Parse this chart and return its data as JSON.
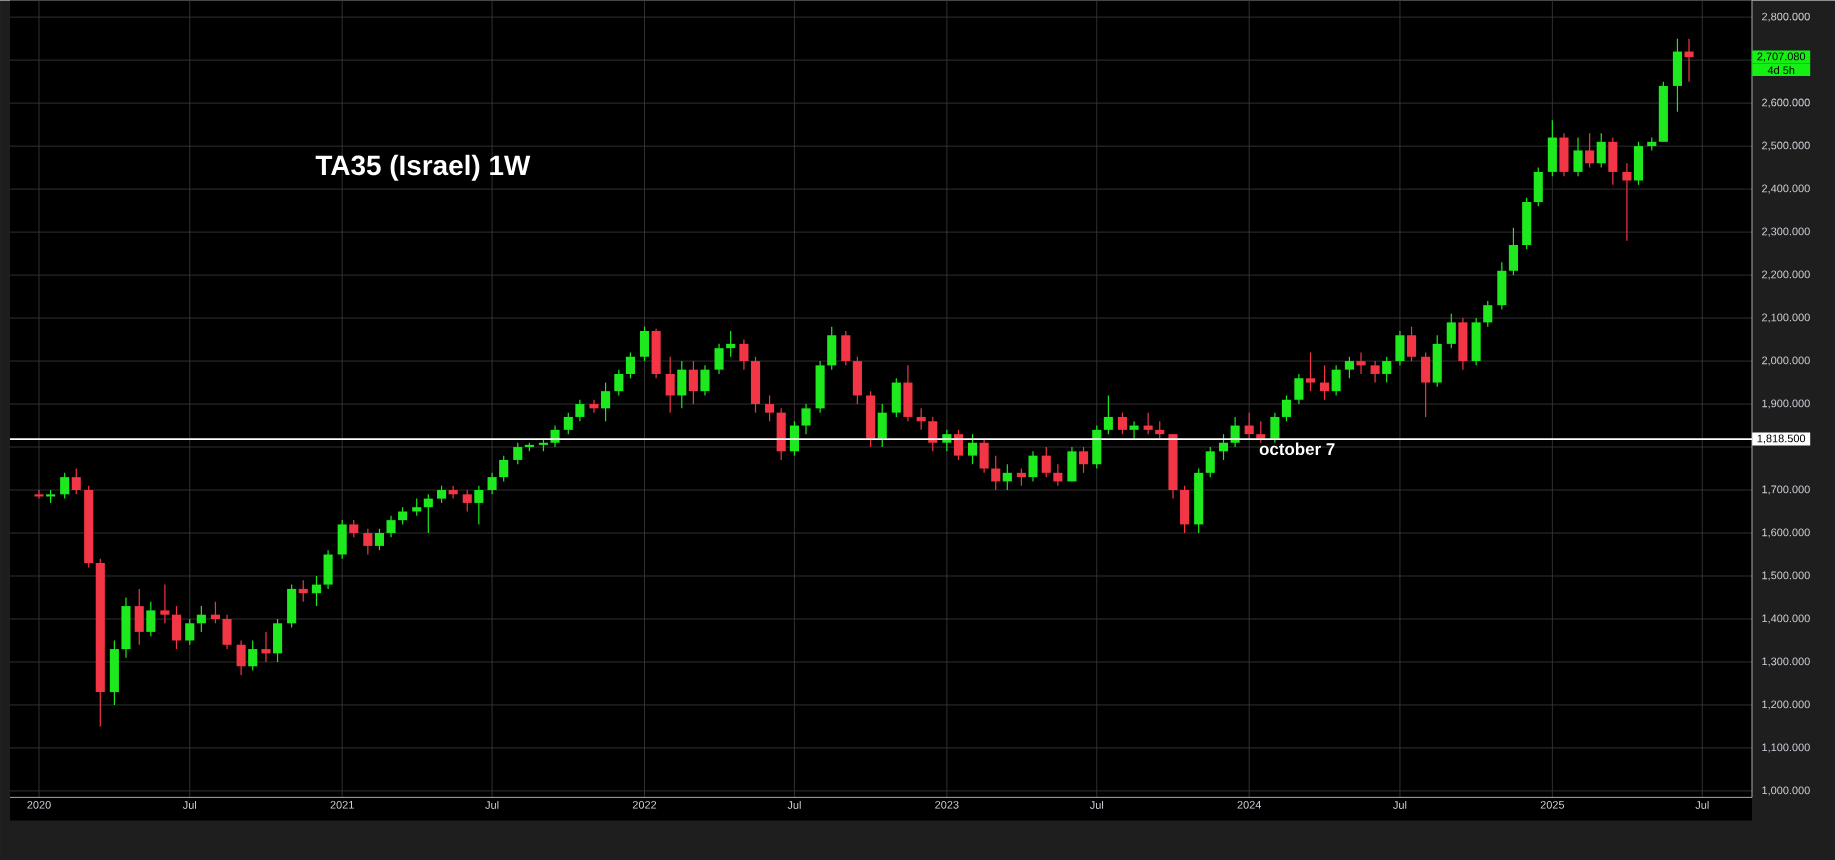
{
  "chart_data": {
    "type": "candlestick",
    "title": "TA35 (Israel) 1W",
    "x": [
      "2020-01-01",
      "2020-01-15",
      "2020-02-01",
      "2020-02-15",
      "2020-03-01",
      "2020-03-15",
      "2020-04-01",
      "2020-04-15",
      "2020-05-01",
      "2020-05-15",
      "2020-06-01",
      "2020-06-15",
      "2020-07-01",
      "2020-07-15",
      "2020-08-01",
      "2020-08-15",
      "2020-09-01",
      "2020-09-15",
      "2020-10-01",
      "2020-10-15",
      "2020-11-01",
      "2020-11-15",
      "2020-12-01",
      "2020-12-15",
      "2021-01-01",
      "2021-01-15",
      "2021-02-01",
      "2021-02-15",
      "2021-03-01",
      "2021-03-15",
      "2021-04-01",
      "2021-04-15",
      "2021-05-01",
      "2021-05-15",
      "2021-06-01",
      "2021-06-15",
      "2021-07-01",
      "2021-07-15",
      "2021-08-01",
      "2021-08-15",
      "2021-09-01",
      "2021-09-15",
      "2021-10-01",
      "2021-10-15",
      "2021-11-01",
      "2021-11-15",
      "2021-12-01",
      "2021-12-15",
      "2022-01-01",
      "2022-01-15",
      "2022-02-01",
      "2022-02-15",
      "2022-03-01",
      "2022-03-15",
      "2022-04-01",
      "2022-04-15",
      "2022-05-01",
      "2022-05-15",
      "2022-06-01",
      "2022-06-15",
      "2022-07-01",
      "2022-07-15",
      "2022-08-01",
      "2022-08-15",
      "2022-09-01",
      "2022-09-15",
      "2022-10-01",
      "2022-10-15",
      "2022-11-01",
      "2022-11-15",
      "2022-12-01",
      "2022-12-15",
      "2023-01-01",
      "2023-01-15",
      "2023-02-01",
      "2023-02-15",
      "2023-03-01",
      "2023-03-15",
      "2023-04-01",
      "2023-04-15",
      "2023-05-01",
      "2023-05-15",
      "2023-06-01",
      "2023-06-15",
      "2023-07-01",
      "2023-07-15",
      "2023-08-01",
      "2023-08-15",
      "2023-09-01",
      "2023-09-15",
      "2023-10-01",
      "2023-10-15",
      "2023-11-01",
      "2023-11-15",
      "2023-12-01",
      "2023-12-15",
      "2024-01-01",
      "2024-01-15",
      "2024-02-01",
      "2024-02-15",
      "2024-03-01",
      "2024-03-15",
      "2024-04-01",
      "2024-04-15",
      "2024-05-01",
      "2024-05-15",
      "2024-06-01",
      "2024-06-15",
      "2024-07-01",
      "2024-07-15",
      "2024-08-01",
      "2024-08-15",
      "2024-09-01",
      "2024-09-15",
      "2024-10-01",
      "2024-10-15",
      "2024-11-01",
      "2024-11-15",
      "2024-12-01",
      "2024-12-15",
      "2025-01-01",
      "2025-01-15",
      "2025-02-01",
      "2025-02-15",
      "2025-03-01",
      "2025-03-15",
      "2025-04-01",
      "2025-04-15",
      "2025-05-01",
      "2025-05-15",
      "2025-06-01",
      "2025-06-15"
    ],
    "ohlc": [
      [
        1690,
        1700,
        1680,
        1685
      ],
      [
        1685,
        1700,
        1670,
        1690
      ],
      [
        1690,
        1740,
        1680,
        1730
      ],
      [
        1730,
        1750,
        1690,
        1700
      ],
      [
        1700,
        1710,
        1520,
        1530
      ],
      [
        1530,
        1540,
        1150,
        1230
      ],
      [
        1230,
        1350,
        1200,
        1330
      ],
      [
        1330,
        1450,
        1310,
        1430
      ],
      [
        1430,
        1470,
        1340,
        1370
      ],
      [
        1370,
        1440,
        1360,
        1420
      ],
      [
        1420,
        1480,
        1390,
        1410
      ],
      [
        1410,
        1430,
        1330,
        1350
      ],
      [
        1350,
        1400,
        1340,
        1390
      ],
      [
        1390,
        1430,
        1370,
        1410
      ],
      [
        1410,
        1440,
        1390,
        1400
      ],
      [
        1400,
        1410,
        1330,
        1340
      ],
      [
        1340,
        1350,
        1270,
        1290
      ],
      [
        1290,
        1350,
        1280,
        1330
      ],
      [
        1330,
        1370,
        1300,
        1320
      ],
      [
        1320,
        1400,
        1300,
        1390
      ],
      [
        1390,
        1480,
        1380,
        1470
      ],
      [
        1470,
        1490,
        1440,
        1460
      ],
      [
        1460,
        1500,
        1430,
        1480
      ],
      [
        1480,
        1560,
        1470,
        1550
      ],
      [
        1550,
        1630,
        1540,
        1620
      ],
      [
        1620,
        1630,
        1590,
        1600
      ],
      [
        1600,
        1610,
        1550,
        1570
      ],
      [
        1570,
        1610,
        1560,
        1600
      ],
      [
        1600,
        1640,
        1590,
        1630
      ],
      [
        1630,
        1660,
        1620,
        1650
      ],
      [
        1650,
        1680,
        1640,
        1660
      ],
      [
        1660,
        1690,
        1600,
        1680
      ],
      [
        1680,
        1710,
        1670,
        1700
      ],
      [
        1700,
        1710,
        1680,
        1690
      ],
      [
        1690,
        1700,
        1650,
        1670
      ],
      [
        1670,
        1710,
        1620,
        1700
      ],
      [
        1700,
        1740,
        1690,
        1730
      ],
      [
        1730,
        1780,
        1720,
        1770
      ],
      [
        1770,
        1810,
        1760,
        1800
      ],
      [
        1800,
        1810,
        1790,
        1805
      ],
      [
        1805,
        1820,
        1790,
        1810
      ],
      [
        1810,
        1850,
        1800,
        1840
      ],
      [
        1840,
        1880,
        1830,
        1870
      ],
      [
        1870,
        1910,
        1860,
        1900
      ],
      [
        1900,
        1910,
        1880,
        1890
      ],
      [
        1890,
        1950,
        1860,
        1930
      ],
      [
        1930,
        1980,
        1920,
        1970
      ],
      [
        1970,
        2020,
        1960,
        2010
      ],
      [
        2010,
        2080,
        2000,
        2070
      ],
      [
        2070,
        2075,
        1960,
        1970
      ],
      [
        1970,
        2010,
        1880,
        1920
      ],
      [
        1920,
        2000,
        1890,
        1980
      ],
      [
        1980,
        2000,
        1900,
        1930
      ],
      [
        1930,
        1990,
        1920,
        1980
      ],
      [
        1980,
        2040,
        1970,
        2030
      ],
      [
        2030,
        2070,
        2010,
        2040
      ],
      [
        2040,
        2050,
        1980,
        2000
      ],
      [
        2000,
        2010,
        1880,
        1900
      ],
      [
        1900,
        1920,
        1860,
        1880
      ],
      [
        1880,
        1890,
        1770,
        1790
      ],
      [
        1790,
        1860,
        1780,
        1850
      ],
      [
        1850,
        1900,
        1830,
        1890
      ],
      [
        1890,
        2000,
        1880,
        1990
      ],
      [
        1990,
        2080,
        1980,
        2060
      ],
      [
        2060,
        2070,
        1990,
        2000
      ],
      [
        2000,
        2010,
        1900,
        1920
      ],
      [
        1920,
        1930,
        1800,
        1820
      ],
      [
        1820,
        1900,
        1800,
        1880
      ],
      [
        1880,
        1960,
        1870,
        1950
      ],
      [
        1950,
        1990,
        1860,
        1870
      ],
      [
        1870,
        1890,
        1840,
        1860
      ],
      [
        1860,
        1870,
        1790,
        1810
      ],
      [
        1810,
        1840,
        1790,
        1830
      ],
      [
        1830,
        1840,
        1770,
        1780
      ],
      [
        1780,
        1830,
        1760,
        1810
      ],
      [
        1810,
        1820,
        1740,
        1750
      ],
      [
        1750,
        1780,
        1700,
        1720
      ],
      [
        1720,
        1760,
        1700,
        1740
      ],
      [
        1740,
        1750,
        1710,
        1730
      ],
      [
        1730,
        1790,
        1720,
        1780
      ],
      [
        1780,
        1800,
        1730,
        1740
      ],
      [
        1740,
        1760,
        1710,
        1720
      ],
      [
        1720,
        1800,
        1720,
        1790
      ],
      [
        1790,
        1800,
        1740,
        1760
      ],
      [
        1760,
        1850,
        1750,
        1840
      ],
      [
        1840,
        1920,
        1830,
        1870
      ],
      [
        1870,
        1880,
        1830,
        1840
      ],
      [
        1840,
        1860,
        1820,
        1850
      ],
      [
        1850,
        1880,
        1830,
        1840
      ],
      [
        1840,
        1860,
        1820,
        1830
      ],
      [
        1830,
        1830,
        1680,
        1700
      ],
      [
        1700,
        1710,
        1600,
        1620
      ],
      [
        1620,
        1750,
        1600,
        1740
      ],
      [
        1740,
        1800,
        1730,
        1790
      ],
      [
        1790,
        1830,
        1770,
        1810
      ],
      [
        1810,
        1870,
        1800,
        1850
      ],
      [
        1850,
        1880,
        1820,
        1830
      ],
      [
        1830,
        1860,
        1810,
        1820
      ],
      [
        1820,
        1880,
        1810,
        1870
      ],
      [
        1870,
        1920,
        1860,
        1910
      ],
      [
        1910,
        1970,
        1900,
        1960
      ],
      [
        1960,
        2020,
        1930,
        1950
      ],
      [
        1950,
        1990,
        1910,
        1930
      ],
      [
        1930,
        1990,
        1920,
        1980
      ],
      [
        1980,
        2010,
        1960,
        2000
      ],
      [
        2000,
        2020,
        1970,
        1990
      ],
      [
        1990,
        2000,
        1950,
        1970
      ],
      [
        1970,
        2010,
        1950,
        2000
      ],
      [
        2000,
        2070,
        1990,
        2060
      ],
      [
        2060,
        2080,
        2000,
        2010
      ],
      [
        2010,
        2020,
        1870,
        1950
      ],
      [
        1950,
        2060,
        1940,
        2040
      ],
      [
        2040,
        2110,
        2030,
        2090
      ],
      [
        2090,
        2100,
        1980,
        2000
      ],
      [
        2000,
        2100,
        1990,
        2090
      ],
      [
        2090,
        2140,
        2080,
        2130
      ],
      [
        2130,
        2230,
        2120,
        2210
      ],
      [
        2210,
        2310,
        2200,
        2270
      ],
      [
        2270,
        2380,
        2260,
        2370
      ],
      [
        2370,
        2450,
        2360,
        2440
      ],
      [
        2440,
        2560,
        2430,
        2520
      ],
      [
        2520,
        2530,
        2430,
        2440
      ],
      [
        2440,
        2520,
        2430,
        2490
      ],
      [
        2490,
        2530,
        2450,
        2460
      ],
      [
        2460,
        2530,
        2450,
        2510
      ],
      [
        2510,
        2520,
        2410,
        2440
      ],
      [
        2440,
        2460,
        2280,
        2420
      ],
      [
        2420,
        2510,
        2410,
        2500
      ],
      [
        2500,
        2520,
        2490,
        2510
      ],
      [
        2510,
        2650,
        2510,
        2640
      ],
      [
        2640,
        2750,
        2580,
        2720
      ],
      [
        2720,
        2750,
        2650,
        2707.08
      ]
    ],
    "colors": [
      "#f23645",
      "#1ee81e",
      "#1ee81e",
      "#f23645",
      "#f23645",
      "#f23645",
      "#1ee81e",
      "#1ee81e",
      "#f23645",
      "#1ee81e",
      "#f23645",
      "#f23645",
      "#1ee81e",
      "#1ee81e",
      "#f23645",
      "#f23645",
      "#f23645",
      "#1ee81e",
      "#f23645",
      "#1ee81e",
      "#1ee81e",
      "#f23645",
      "#1ee81e",
      "#1ee81e",
      "#1ee81e",
      "#f23645",
      "#f23645",
      "#1ee81e",
      "#1ee81e",
      "#1ee81e",
      "#1ee81e",
      "#1ee81e",
      "#1ee81e",
      "#f23645",
      "#f23645",
      "#1ee81e",
      "#1ee81e",
      "#1ee81e",
      "#1ee81e",
      "#1ee81e",
      "#1ee81e",
      "#1ee81e",
      "#1ee81e",
      "#1ee81e",
      "#f23645",
      "#1ee81e",
      "#1ee81e",
      "#1ee81e",
      "#1ee81e",
      "#f23645",
      "#f23645",
      "#1ee81e",
      "#f23645",
      "#1ee81e",
      "#1ee81e",
      "#1ee81e",
      "#f23645",
      "#f23645",
      "#f23645",
      "#f23645",
      "#1ee81e",
      "#1ee81e",
      "#1ee81e",
      "#1ee81e",
      "#f23645",
      "#f23645",
      "#f23645",
      "#1ee81e",
      "#1ee81e",
      "#f23645",
      "#f23645",
      "#f23645",
      "#1ee81e",
      "#f23645",
      "#1ee81e",
      "#f23645",
      "#f23645",
      "#1ee81e",
      "#f23645",
      "#1ee81e",
      "#f23645",
      "#f23645",
      "#1ee81e",
      "#f23645",
      "#1ee81e",
      "#1ee81e",
      "#f23645",
      "#1ee81e",
      "#f23645",
      "#f23645",
      "#f23645",
      "#f23645",
      "#1ee81e",
      "#1ee81e",
      "#1ee81e",
      "#1ee81e",
      "#f23645",
      "#f23645",
      "#1ee81e",
      "#1ee81e",
      "#1ee81e",
      "#f23645",
      "#f23645",
      "#1ee81e",
      "#1ee81e",
      "#f23645",
      "#f23645",
      "#1ee81e",
      "#1ee81e",
      "#f23645",
      "#f23645",
      "#1ee81e",
      "#1ee81e",
      "#f23645",
      "#1ee81e",
      "#1ee81e",
      "#1ee81e",
      "#1ee81e",
      "#1ee81e",
      "#1ee81e",
      "#1ee81e",
      "#f23645",
      "#1ee81e",
      "#f23645",
      "#1ee81e",
      "#f23645",
      "#f23645",
      "#1ee81e",
      "#1ee81e",
      "#1ee81e",
      "#1ee81e",
      "#f23645"
    ],
    "xlim": [
      "2019-11-27",
      "2025-08-30"
    ],
    "xticks": [
      {
        "value": "2020-01-01",
        "label": "2020"
      },
      {
        "value": "2020-07-01",
        "label": "Jul"
      },
      {
        "value": "2021-01-01",
        "label": "2021"
      },
      {
        "value": "2021-07-01",
        "label": "Jul"
      },
      {
        "value": "2022-01-01",
        "label": "2022"
      },
      {
        "value": "2022-07-01",
        "label": "Jul"
      },
      {
        "value": "2023-01-01",
        "label": "2023"
      },
      {
        "value": "2023-07-01",
        "label": "Jul"
      },
      {
        "value": "2024-01-01",
        "label": "2024"
      },
      {
        "value": "2024-07-01",
        "label": "Jul"
      },
      {
        "value": "2025-01-01",
        "label": "2025"
      },
      {
        "value": "2025-07-01",
        "label": "Jul"
      }
    ],
    "ylim": [
      985,
      2839
    ],
    "yticks": [
      {
        "value": 1000,
        "label": "1,000.000"
      },
      {
        "value": 1100,
        "label": "1,100.000"
      },
      {
        "value": 1200,
        "label": "1,200.000"
      },
      {
        "value": 1300,
        "label": "1,300.000"
      },
      {
        "value": 1400,
        "label": "1,400.000"
      },
      {
        "value": 1500,
        "label": "1,500.000"
      },
      {
        "value": 1600,
        "label": "1,600.000"
      },
      {
        "value": 1700,
        "label": "1,700.000"
      },
      {
        "value": 1800,
        "label": null
      },
      {
        "value": 1900,
        "label": "1,900.000"
      },
      {
        "value": 2000,
        "label": "2,000.000"
      },
      {
        "value": 2100,
        "label": "2,100.000"
      },
      {
        "value": 2200,
        "label": "2,200.000"
      },
      {
        "value": 2300,
        "label": "2,300.000"
      },
      {
        "value": 2400,
        "label": "2,400.000"
      },
      {
        "value": 2500,
        "label": "2,500.000"
      },
      {
        "value": 2600,
        "label": "2,600.000"
      },
      {
        "value": 2700,
        "label": null
      },
      {
        "value": 2800,
        "label": "2,800.000"
      }
    ],
    "grid": true,
    "ref_lines": [
      {
        "axis": "y",
        "value": 1818.5,
        "label": "october 7",
        "color": "#ffffff"
      }
    ],
    "annotations": [
      "1,818.500",
      "2,707.080",
      "4d 5h"
    ]
  }
}
